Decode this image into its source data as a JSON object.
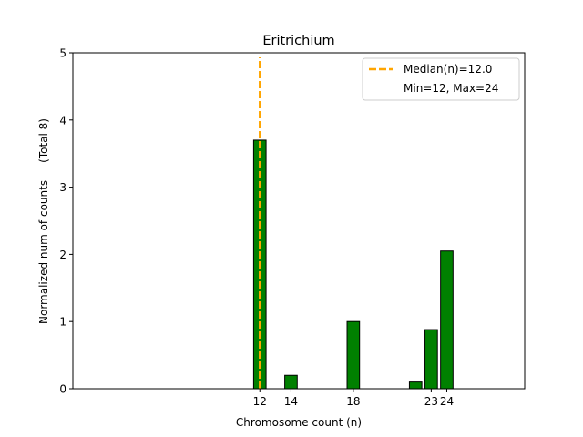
{
  "chart_data": {
    "type": "bar",
    "title": "Eritrichium",
    "xlabel": "Chromosome count (n)",
    "ylabel": "Normalized num of counts     (Total 8)",
    "xlim": [
      0,
      29
    ],
    "ylim": [
      0,
      5
    ],
    "x_ticks": [
      12,
      14,
      18,
      23,
      24
    ],
    "x_tick_labels": [
      "12",
      "14",
      "18",
      "23",
      "24"
    ],
    "y_ticks": [
      0,
      1,
      2,
      3,
      4,
      5
    ],
    "y_tick_labels": [
      "0",
      "1",
      "2",
      "3",
      "4",
      "5"
    ],
    "bar_color": "#008000",
    "bar_edge_color": "#000000",
    "bars": [
      {
        "x": 12,
        "value": 3.7
      },
      {
        "x": 14,
        "value": 0.2
      },
      {
        "x": 18,
        "value": 1.0
      },
      {
        "x": 22,
        "value": 0.1
      },
      {
        "x": 23,
        "value": 0.88
      },
      {
        "x": 24,
        "value": 2.05
      }
    ],
    "median_line": {
      "x": 12,
      "color": "#FFA500",
      "style": "dashed"
    },
    "legend": {
      "placement": "top-right",
      "entries": [
        "Median(n)=12.0",
        "Min=12, Max=24"
      ]
    },
    "grid": false
  }
}
